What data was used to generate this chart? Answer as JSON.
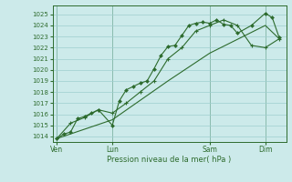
{
  "xlabel": "Pression niveau de la mer( hPa )",
  "bg_color": "#cceaea",
  "line_color": "#2d6b2d",
  "grid_color": "#9ecece",
  "ylim": [
    1013.5,
    1025.8
  ],
  "yticks": [
    1014,
    1015,
    1016,
    1017,
    1018,
    1019,
    1020,
    1021,
    1022,
    1023,
    1024,
    1025
  ],
  "xtick_labels": [
    "Ven",
    "Lun",
    "Sam",
    "Dim"
  ],
  "xtick_positions": [
    0,
    4,
    11,
    15
  ],
  "xlim": [
    -0.3,
    16.5
  ],
  "series1": [
    [
      0.0,
      1013.8
    ],
    [
      0.5,
      1014.2
    ],
    [
      1.0,
      1014.4
    ],
    [
      1.5,
      1015.6
    ],
    [
      2.0,
      1015.8
    ],
    [
      2.5,
      1016.1
    ],
    [
      3.0,
      1016.4
    ],
    [
      4.0,
      1015.0
    ],
    [
      4.5,
      1017.2
    ],
    [
      5.0,
      1018.2
    ],
    [
      5.5,
      1018.5
    ],
    [
      6.0,
      1018.8
    ],
    [
      6.5,
      1019.0
    ],
    [
      7.0,
      1020.1
    ],
    [
      7.5,
      1021.3
    ],
    [
      8.0,
      1022.1
    ],
    [
      8.5,
      1022.2
    ],
    [
      9.0,
      1023.1
    ],
    [
      9.5,
      1024.0
    ],
    [
      10.0,
      1024.2
    ],
    [
      10.5,
      1024.3
    ],
    [
      11.0,
      1024.2
    ],
    [
      11.5,
      1024.5
    ],
    [
      12.0,
      1024.1
    ],
    [
      12.5,
      1024.0
    ],
    [
      13.0,
      1023.3
    ],
    [
      14.0,
      1024.0
    ],
    [
      15.0,
      1025.1
    ],
    [
      15.5,
      1024.7
    ],
    [
      16.0,
      1022.9
    ]
  ],
  "series2": [
    [
      0.0,
      1013.8
    ],
    [
      1.0,
      1015.2
    ],
    [
      2.0,
      1015.7
    ],
    [
      3.0,
      1016.4
    ],
    [
      4.0,
      1016.1
    ],
    [
      5.0,
      1017.0
    ],
    [
      6.0,
      1018.0
    ],
    [
      7.0,
      1019.0
    ],
    [
      8.0,
      1021.0
    ],
    [
      9.0,
      1022.0
    ],
    [
      10.0,
      1023.5
    ],
    [
      11.0,
      1024.0
    ],
    [
      12.0,
      1024.5
    ],
    [
      13.0,
      1024.0
    ],
    [
      14.0,
      1022.2
    ],
    [
      15.0,
      1022.0
    ],
    [
      16.0,
      1022.8
    ]
  ],
  "series3": [
    [
      0.0,
      1013.8
    ],
    [
      4.0,
      1015.5
    ],
    [
      8.0,
      1019.0
    ],
    [
      11.0,
      1021.5
    ],
    [
      15.0,
      1024.0
    ],
    [
      16.0,
      1022.8
    ]
  ]
}
